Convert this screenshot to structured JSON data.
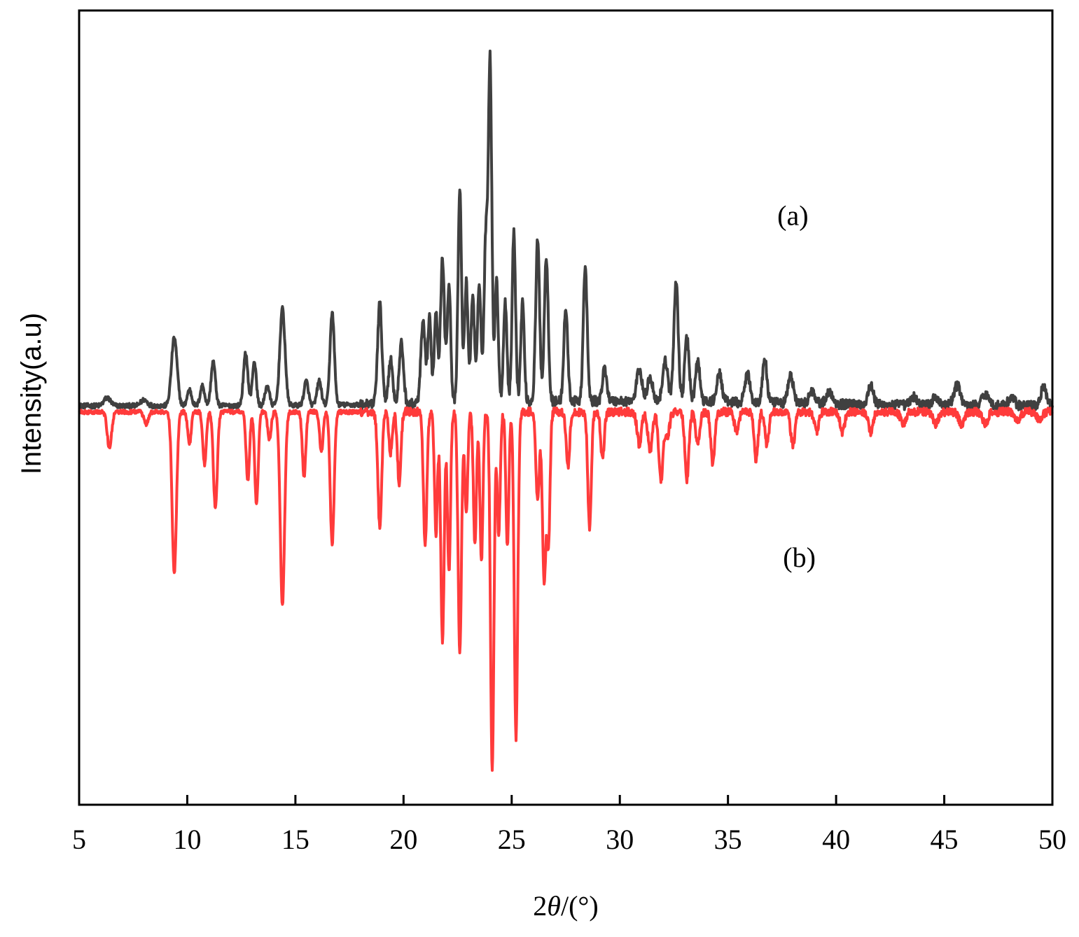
{
  "chart_data": {
    "type": "line",
    "title": "",
    "xlabel_parts": [
      "2",
      "θ",
      "/(°)"
    ],
    "ylabel": "Intensity(a.u)",
    "xlim": [
      5,
      50
    ],
    "ylim": [
      -1.0,
      1.0
    ],
    "x_ticks": [
      5,
      10,
      15,
      20,
      25,
      30,
      35,
      40,
      45,
      50
    ],
    "x_tick_labels": [
      "5",
      "10",
      "15",
      "20",
      "25",
      "30",
      "35",
      "40",
      "45",
      "50"
    ],
    "y_ticks_shown": false,
    "grid": false,
    "legend": "none",
    "annotations": [
      {
        "text": "(a)",
        "x": 38.0,
        "y": 0.45
      },
      {
        "text": "(b)",
        "x": 38.3,
        "y": -0.4
      }
    ],
    "series": [
      {
        "key": "a",
        "color": "#404040",
        "baseline": 0.0,
        "noise": 0.012,
        "peaks": [
          [
            6.3,
            0.02,
            0.15
          ],
          [
            8.0,
            0.015,
            0.15
          ],
          [
            9.4,
            0.17,
            0.13
          ],
          [
            10.1,
            0.04,
            0.1
          ],
          [
            10.7,
            0.05,
            0.1
          ],
          [
            11.2,
            0.11,
            0.1
          ],
          [
            12.7,
            0.13,
            0.1
          ],
          [
            13.1,
            0.11,
            0.09
          ],
          [
            13.7,
            0.05,
            0.1
          ],
          [
            14.4,
            0.24,
            0.12
          ],
          [
            15.5,
            0.06,
            0.1
          ],
          [
            16.1,
            0.06,
            0.1
          ],
          [
            16.7,
            0.23,
            0.1
          ],
          [
            18.9,
            0.25,
            0.1
          ],
          [
            19.4,
            0.11,
            0.1
          ],
          [
            19.9,
            0.15,
            0.1
          ],
          [
            20.9,
            0.2,
            0.1
          ],
          [
            21.2,
            0.21,
            0.08
          ],
          [
            21.5,
            0.23,
            0.08
          ],
          [
            21.8,
            0.36,
            0.09
          ],
          [
            22.1,
            0.3,
            0.08
          ],
          [
            22.6,
            0.53,
            0.08
          ],
          [
            22.9,
            0.3,
            0.08
          ],
          [
            23.2,
            0.27,
            0.08
          ],
          [
            23.5,
            0.3,
            0.08
          ],
          [
            23.8,
            0.4,
            0.08
          ],
          [
            24.0,
            0.85,
            0.08
          ],
          [
            24.3,
            0.3,
            0.08
          ],
          [
            24.7,
            0.25,
            0.08
          ],
          [
            25.1,
            0.42,
            0.08
          ],
          [
            25.5,
            0.25,
            0.08
          ],
          [
            26.2,
            0.4,
            0.09
          ],
          [
            26.6,
            0.36,
            0.09
          ],
          [
            27.5,
            0.23,
            0.09
          ],
          [
            28.4,
            0.33,
            0.09
          ],
          [
            29.3,
            0.08,
            0.1
          ],
          [
            30.9,
            0.08,
            0.12
          ],
          [
            31.4,
            0.06,
            0.12
          ],
          [
            32.1,
            0.1,
            0.12
          ],
          [
            32.6,
            0.3,
            0.1
          ],
          [
            33.1,
            0.16,
            0.1
          ],
          [
            33.6,
            0.1,
            0.1
          ],
          [
            34.6,
            0.07,
            0.12
          ],
          [
            35.9,
            0.07,
            0.12
          ],
          [
            36.7,
            0.11,
            0.1
          ],
          [
            37.9,
            0.07,
            0.12
          ],
          [
            38.9,
            0.03,
            0.15
          ],
          [
            39.7,
            0.03,
            0.15
          ],
          [
            41.6,
            0.05,
            0.12
          ],
          [
            43.6,
            0.02,
            0.15
          ],
          [
            44.6,
            0.02,
            0.15
          ],
          [
            45.6,
            0.05,
            0.15
          ],
          [
            46.9,
            0.03,
            0.15
          ],
          [
            48.1,
            0.02,
            0.15
          ],
          [
            49.6,
            0.05,
            0.12
          ]
        ]
      },
      {
        "key": "b",
        "color": "#ff3b3b",
        "baseline": -0.015,
        "noise": 0.01,
        "peaks": [
          [
            6.4,
            -0.09,
            0.1
          ],
          [
            8.1,
            -0.03,
            0.1
          ],
          [
            9.4,
            -0.4,
            0.1
          ],
          [
            10.1,
            -0.08,
            0.08
          ],
          [
            10.8,
            -0.13,
            0.08
          ],
          [
            11.3,
            -0.24,
            0.09
          ],
          [
            12.8,
            -0.17,
            0.08
          ],
          [
            13.2,
            -0.23,
            0.08
          ],
          [
            13.8,
            -0.07,
            0.08
          ],
          [
            14.4,
            -0.48,
            0.1
          ],
          [
            15.4,
            -0.16,
            0.08
          ],
          [
            16.2,
            -0.1,
            0.08
          ],
          [
            16.7,
            -0.33,
            0.09
          ],
          [
            18.9,
            -0.28,
            0.09
          ],
          [
            19.4,
            -0.1,
            0.08
          ],
          [
            19.8,
            -0.18,
            0.08
          ],
          [
            21.0,
            -0.33,
            0.08
          ],
          [
            21.5,
            -0.3,
            0.07
          ],
          [
            21.8,
            -0.57,
            0.08
          ],
          [
            22.1,
            -0.4,
            0.07
          ],
          [
            22.6,
            -0.6,
            0.08
          ],
          [
            22.9,
            -0.25,
            0.07
          ],
          [
            23.3,
            -0.33,
            0.07
          ],
          [
            23.6,
            -0.37,
            0.07
          ],
          [
            24.1,
            -0.89,
            0.08
          ],
          [
            24.4,
            -0.3,
            0.07
          ],
          [
            24.8,
            -0.33,
            0.07
          ],
          [
            25.2,
            -0.81,
            0.08
          ],
          [
            26.2,
            -0.22,
            0.08
          ],
          [
            26.5,
            -0.42,
            0.08
          ],
          [
            26.7,
            -0.33,
            0.07
          ],
          [
            27.6,
            -0.14,
            0.08
          ],
          [
            28.6,
            -0.29,
            0.08
          ],
          [
            29.2,
            -0.12,
            0.08
          ],
          [
            30.9,
            -0.08,
            0.1
          ],
          [
            31.4,
            -0.1,
            0.1
          ],
          [
            31.9,
            -0.17,
            0.1
          ],
          [
            32.2,
            -0.06,
            0.1
          ],
          [
            33.1,
            -0.17,
            0.09
          ],
          [
            33.6,
            -0.08,
            0.09
          ],
          [
            34.3,
            -0.13,
            0.09
          ],
          [
            35.4,
            -0.05,
            0.1
          ],
          [
            36.3,
            -0.12,
            0.09
          ],
          [
            36.8,
            -0.08,
            0.09
          ],
          [
            38.0,
            -0.08,
            0.1
          ],
          [
            39.1,
            -0.05,
            0.1
          ],
          [
            40.3,
            -0.05,
            0.1
          ],
          [
            41.6,
            -0.05,
            0.1
          ],
          [
            43.1,
            -0.03,
            0.12
          ],
          [
            44.6,
            -0.03,
            0.12
          ],
          [
            45.8,
            -0.03,
            0.12
          ],
          [
            46.9,
            -0.03,
            0.12
          ],
          [
            48.4,
            -0.02,
            0.12
          ],
          [
            49.4,
            -0.02,
            0.12
          ]
        ]
      }
    ]
  }
}
